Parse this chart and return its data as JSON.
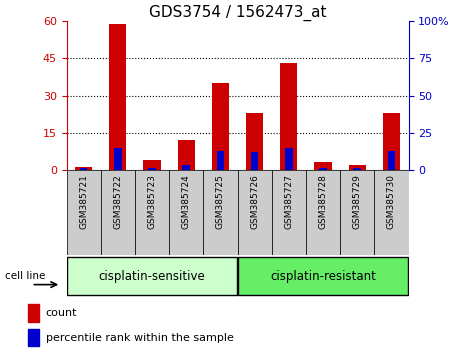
{
  "title": "GDS3754 / 1562473_at",
  "samples": [
    "GSM385721",
    "GSM385722",
    "GSM385723",
    "GSM385724",
    "GSM385725",
    "GSM385726",
    "GSM385727",
    "GSM385728",
    "GSM385729",
    "GSM385730"
  ],
  "count_values": [
    1,
    59,
    4,
    12,
    35,
    23,
    43,
    3,
    2,
    23
  ],
  "percentile_values": [
    1,
    15,
    1,
    3,
    13,
    12,
    15,
    1,
    1,
    13
  ],
  "left_ylim": [
    0,
    60
  ],
  "left_yticks": [
    0,
    15,
    30,
    45,
    60
  ],
  "right_ylim": [
    0,
    100
  ],
  "right_yticks": [
    0,
    25,
    50,
    75,
    100
  ],
  "right_yticklabels": [
    "0",
    "25",
    "50",
    "75",
    "100%"
  ],
  "bar_color_red": "#cc0000",
  "bar_color_blue": "#0000cc",
  "left_axis_color": "#cc0000",
  "right_axis_color": "#0000cc",
  "group1_label": "cisplatin-sensitive",
  "group2_label": "cisplatin-resistant",
  "group1_color": "#ccffcc",
  "group2_color": "#66ee66",
  "cell_line_label": "cell line",
  "legend_count": "count",
  "legend_percentile": "percentile rank within the sample",
  "bar_width": 0.5,
  "title_fontsize": 11,
  "tick_fontsize": 8,
  "group_fontsize": 8.5,
  "sample_fontsize": 6.5,
  "legend_fontsize": 8,
  "background_color": "#ffffff",
  "plot_bg_color": "#ffffff",
  "grid_color": "#000000",
  "sample_bg_color": "#cccccc"
}
